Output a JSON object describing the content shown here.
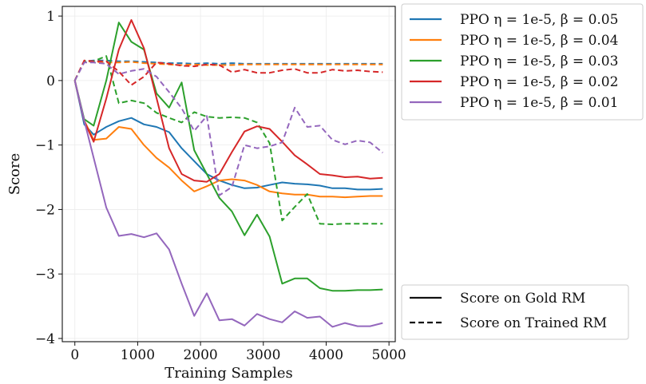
{
  "chart_data": {
    "type": "line",
    "title": "",
    "xlabel": "Training Samples",
    "ylabel": "Score",
    "xlim": [
      -200,
      5100
    ],
    "ylim": [
      -4.05,
      1.15
    ],
    "xticks": [
      0,
      1000,
      2000,
      3000,
      4000,
      5000
    ],
    "xtick_labels": [
      "0",
      "1000",
      "2000",
      "3000",
      "4000",
      "5000"
    ],
    "yticks": [
      1,
      0,
      -1,
      -2,
      -3,
      -4
    ],
    "ytick_labels": [
      "1",
      "0",
      "−1",
      "−2",
      "−3",
      "−4"
    ],
    "grid": true,
    "legend_position": "outside-right",
    "series_legend": [
      {
        "label": "PPO η = 1e-5, β = 0.05",
        "color": "#1f77b4"
      },
      {
        "label": "PPO η = 1e-5, β = 0.04",
        "color": "#ff7f0e"
      },
      {
        "label": "PPO η = 1e-5, β = 0.03",
        "color": "#2ca02c"
      },
      {
        "label": "PPO η = 1e-5, β = 0.02",
        "color": "#d62728"
      },
      {
        "label": "PPO η = 1e-5, β = 0.01",
        "color": "#9467bd"
      }
    ],
    "style_legend": [
      {
        "label": "Score on Gold RM",
        "dash": "solid"
      },
      {
        "label": "Score on Trained RM",
        "dash": "dashed"
      }
    ],
    "x": [
      0,
      150,
      300,
      500,
      700,
      900,
      1100,
      1300,
      1500,
      1700,
      1900,
      2100,
      2300,
      2500,
      2700,
      2900,
      3100,
      3300,
      3500,
      3700,
      3900,
      4100,
      4300,
      4500,
      4700,
      4900
    ],
    "series": [
      {
        "color": "#1f77b4",
        "dash": "solid",
        "values": [
          0.0,
          -0.68,
          -0.84,
          -0.72,
          -0.63,
          -0.58,
          -0.68,
          -0.72,
          -0.8,
          -1.05,
          -1.25,
          -1.45,
          -1.55,
          -1.62,
          -1.67,
          -1.66,
          -1.62,
          -1.58,
          -1.6,
          -1.61,
          -1.63,
          -1.67,
          -1.67,
          -1.69,
          -1.69,
          -1.68
        ]
      },
      {
        "color": "#1f77b4",
        "dash": "dashed",
        "values": [
          0.0,
          0.3,
          0.31,
          0.31,
          0.3,
          0.3,
          0.29,
          0.28,
          0.27,
          0.27,
          0.26,
          0.27,
          0.26,
          0.27,
          0.26,
          0.26,
          0.26,
          0.26,
          0.26,
          0.26,
          0.26,
          0.26,
          0.26,
          0.26,
          0.26,
          0.26
        ]
      },
      {
        "color": "#ff7f0e",
        "dash": "solid",
        "values": [
          0.0,
          -0.62,
          -0.92,
          -0.9,
          -0.72,
          -0.75,
          -1.0,
          -1.2,
          -1.35,
          -1.55,
          -1.72,
          -1.64,
          -1.55,
          -1.53,
          -1.55,
          -1.62,
          -1.72,
          -1.75,
          -1.77,
          -1.77,
          -1.8,
          -1.8,
          -1.81,
          -1.8,
          -1.79,
          -1.79
        ]
      },
      {
        "color": "#ff7f0e",
        "dash": "dashed",
        "values": [
          0.0,
          0.3,
          0.29,
          0.28,
          0.28,
          0.29,
          0.27,
          0.26,
          0.25,
          0.24,
          0.25,
          0.24,
          0.24,
          0.24,
          0.25,
          0.25,
          0.25,
          0.25,
          0.25,
          0.25,
          0.25,
          0.25,
          0.25,
          0.25,
          0.25,
          0.25
        ]
      },
      {
        "color": "#2ca02c",
        "dash": "solid",
        "values": [
          0.0,
          -0.6,
          -0.7,
          0.0,
          0.9,
          0.6,
          0.48,
          -0.2,
          -0.42,
          -0.03,
          -1.08,
          -1.45,
          -1.82,
          -2.03,
          -2.4,
          -2.08,
          -2.42,
          -3.15,
          -3.07,
          -3.07,
          -3.22,
          -3.26,
          -3.26,
          -3.25,
          -3.25,
          -3.24
        ]
      },
      {
        "color": "#2ca02c",
        "dash": "dashed",
        "values": [
          0.0,
          0.3,
          0.3,
          0.38,
          -0.35,
          -0.31,
          -0.35,
          -0.5,
          -0.58,
          -0.65,
          -0.49,
          -0.56,
          -0.58,
          -0.57,
          -0.58,
          -0.65,
          -0.97,
          -2.17,
          -1.96,
          -1.76,
          -2.22,
          -2.23,
          -2.22,
          -2.22,
          -2.22,
          -2.22
        ]
      },
      {
        "color": "#d62728",
        "dash": "solid",
        "values": [
          0.0,
          -0.63,
          -0.95,
          -0.28,
          0.48,
          0.94,
          0.5,
          -0.27,
          -1.05,
          -1.45,
          -1.55,
          -1.57,
          -1.45,
          -1.11,
          -0.79,
          -0.71,
          -0.75,
          -0.95,
          -1.16,
          -1.3,
          -1.45,
          -1.47,
          -1.5,
          -1.49,
          -1.52,
          -1.51
        ]
      },
      {
        "color": "#d62728",
        "dash": "dashed",
        "values": [
          0.0,
          0.31,
          0.3,
          0.3,
          0.14,
          -0.07,
          0.06,
          0.28,
          0.26,
          0.23,
          0.22,
          0.25,
          0.24,
          0.13,
          0.17,
          0.12,
          0.12,
          0.16,
          0.18,
          0.12,
          0.12,
          0.17,
          0.15,
          0.16,
          0.14,
          0.13
        ]
      },
      {
        "color": "#9467bd",
        "dash": "solid",
        "values": [
          0.0,
          -0.62,
          -1.2,
          -1.97,
          -2.41,
          -2.38,
          -2.43,
          -2.37,
          -2.62,
          -3.15,
          -3.65,
          -3.3,
          -3.72,
          -3.7,
          -3.8,
          -3.62,
          -3.7,
          -3.75,
          -3.58,
          -3.68,
          -3.66,
          -3.82,
          -3.76,
          -3.81,
          -3.81,
          -3.76
        ]
      },
      {
        "color": "#9467bd",
        "dash": "dashed",
        "values": [
          0.0,
          0.28,
          0.28,
          0.26,
          0.1,
          0.15,
          0.18,
          0.06,
          -0.18,
          -0.43,
          -0.78,
          -0.55,
          -1.78,
          -1.65,
          -1.0,
          -1.05,
          -1.02,
          -0.96,
          -0.42,
          -0.72,
          -0.7,
          -0.92,
          -0.99,
          -0.93,
          -0.96,
          -1.12
        ]
      }
    ]
  }
}
